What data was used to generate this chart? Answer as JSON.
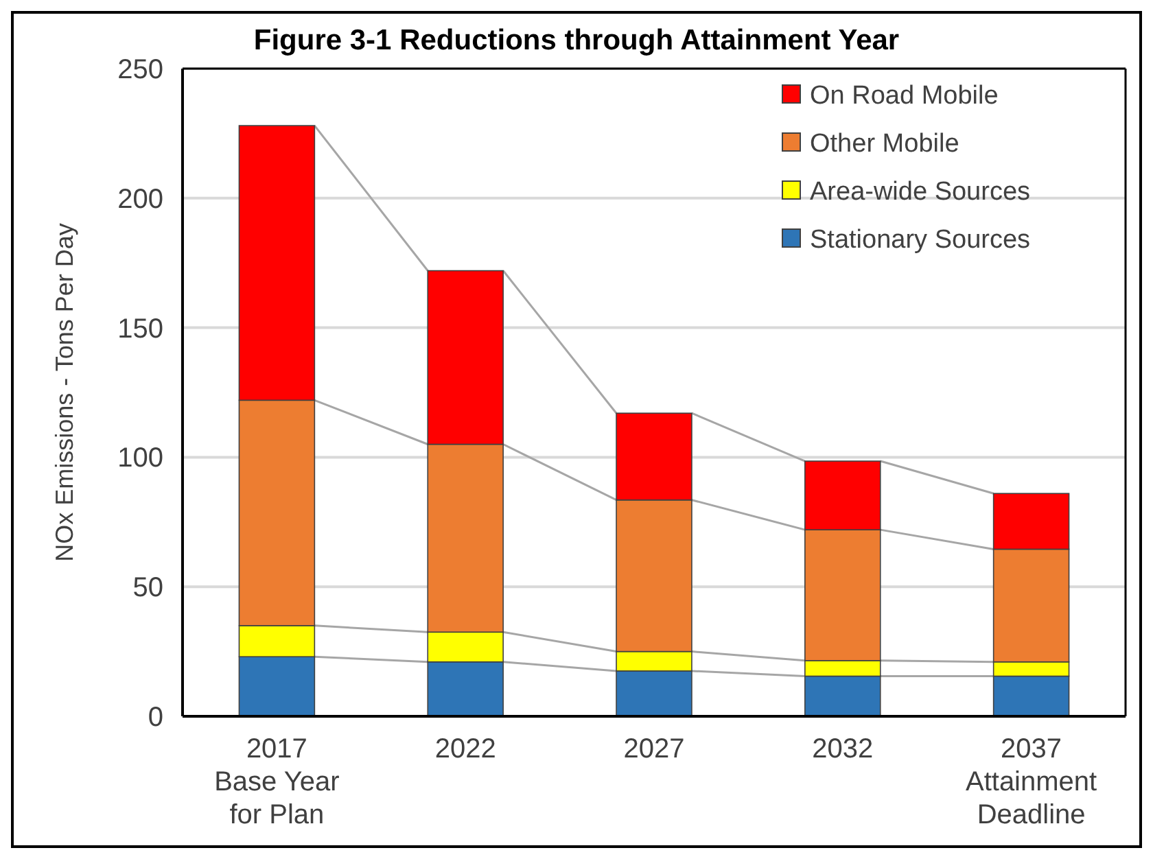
{
  "chart_data": {
    "type": "bar",
    "title": "Figure 3-1 Reductions through Attainment Year",
    "ylabel": "NOx Emissions - Tons Per Day",
    "categories": [
      "2017\nBase Year\nfor Plan",
      "2022",
      "2027",
      "2032",
      "2037\nAttainment\nDeadline"
    ],
    "stacked": true,
    "series": [
      {
        "name": "Stationary Sources",
        "color": "#2e75b6",
        "values": [
          23,
          21,
          17.5,
          15.5,
          15.5
        ]
      },
      {
        "name": "Area-wide Sources",
        "color": "#ffff00",
        "values": [
          12,
          11.5,
          7.5,
          6,
          5.5
        ]
      },
      {
        "name": "Other Mobile",
        "color": "#ed7d31",
        "values": [
          87,
          72.5,
          58.5,
          50.5,
          43.5
        ]
      },
      {
        "name": "On Road Mobile",
        "color": "#ff0000",
        "values": [
          106,
          67,
          33.5,
          26.5,
          21.5
        ]
      }
    ],
    "ylim": [
      0,
      250
    ],
    "yticks": [
      0,
      50,
      100,
      150,
      200,
      250
    ],
    "grid": "y",
    "legend": "top right"
  }
}
